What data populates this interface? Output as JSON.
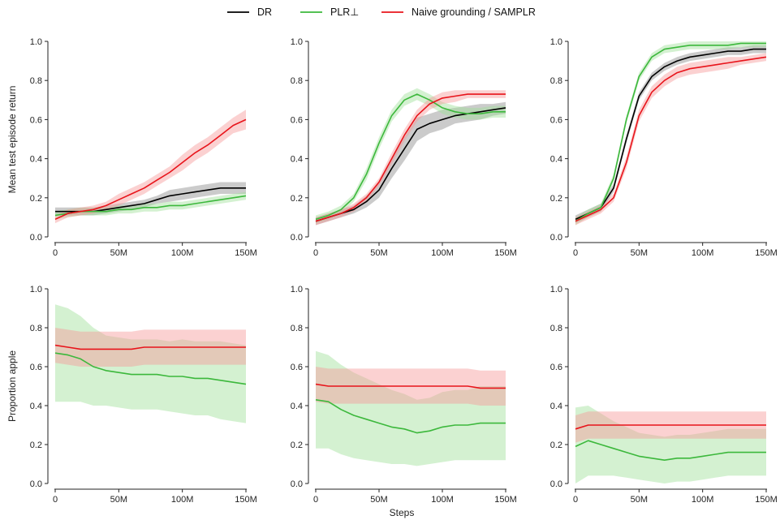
{
  "legend": {
    "placement": "top-center",
    "entries": [
      {
        "label": "DR",
        "color": "#000000"
      },
      {
        "label": "PLR⊥",
        "color": "#3cb83c"
      },
      {
        "label": "Naive grounding / SAMPLR",
        "color": "#e8141b"
      }
    ]
  },
  "band_colors": {
    "DR": "#8c8c8c",
    "PLR⊥": "#9fe09a",
    "Naive grounding / SAMPLR": "#f79a9a"
  },
  "shared_xlabel": "Steps",
  "row_ylabels": [
    "Mean test episode return",
    "Proportion apple"
  ],
  "chart_data": [
    {
      "type": "line",
      "row": 0,
      "col": 0,
      "ylabel": "Mean test episode return",
      "xlim": [
        0,
        150
      ],
      "ylim": [
        0,
        1.0
      ],
      "x_ticks": [
        0,
        50,
        100,
        150
      ],
      "x_tick_labels": [
        "0",
        "50M",
        "100M",
        "150M"
      ],
      "y_ticks": [
        0,
        0.2,
        0.4,
        0.6,
        0.8,
        1.0
      ],
      "y_tick_labels": [
        "0.0",
        "0.2",
        "0.4",
        "0.6",
        "0.8",
        "1.0"
      ],
      "series": [
        {
          "name": "DR",
          "x": [
            0,
            10,
            20,
            30,
            40,
            50,
            60,
            70,
            80,
            90,
            100,
            110,
            120,
            130,
            140,
            150
          ],
          "y": [
            0.13,
            0.13,
            0.13,
            0.13,
            0.14,
            0.15,
            0.16,
            0.17,
            0.19,
            0.21,
            0.22,
            0.23,
            0.24,
            0.25,
            0.25,
            0.25
          ],
          "band": [
            0.02,
            0.02,
            0.02,
            0.02,
            0.02,
            0.02,
            0.02,
            0.02,
            0.02,
            0.03,
            0.03,
            0.03,
            0.03,
            0.03,
            0.03,
            0.03
          ]
        },
        {
          "name": "PLR⊥",
          "x": [
            0,
            10,
            20,
            30,
            40,
            50,
            60,
            70,
            80,
            90,
            100,
            110,
            120,
            130,
            140,
            150
          ],
          "y": [
            0.11,
            0.12,
            0.13,
            0.13,
            0.13,
            0.14,
            0.14,
            0.15,
            0.15,
            0.16,
            0.16,
            0.17,
            0.18,
            0.19,
            0.2,
            0.21
          ],
          "band": [
            0.02,
            0.02,
            0.02,
            0.02,
            0.02,
            0.02,
            0.02,
            0.02,
            0.02,
            0.02,
            0.02,
            0.02,
            0.02,
            0.02,
            0.02,
            0.02
          ]
        },
        {
          "name": "Naive grounding / SAMPLR",
          "x": [
            0,
            10,
            20,
            30,
            40,
            50,
            60,
            70,
            80,
            90,
            100,
            110,
            120,
            130,
            140,
            150
          ],
          "y": [
            0.09,
            0.12,
            0.13,
            0.14,
            0.16,
            0.19,
            0.22,
            0.25,
            0.29,
            0.33,
            0.38,
            0.43,
            0.47,
            0.52,
            0.57,
            0.6
          ],
          "band": [
            0.02,
            0.02,
            0.02,
            0.02,
            0.02,
            0.03,
            0.03,
            0.03,
            0.03,
            0.03,
            0.04,
            0.04,
            0.04,
            0.04,
            0.04,
            0.05
          ]
        }
      ]
    },
    {
      "type": "line",
      "row": 0,
      "col": 1,
      "xlim": [
        0,
        150
      ],
      "ylim": [
        0,
        1.0
      ],
      "x_ticks": [
        0,
        50,
        100,
        150
      ],
      "x_tick_labels": [
        "0",
        "50M",
        "100M",
        "150M"
      ],
      "y_ticks": [
        0,
        0.2,
        0.4,
        0.6,
        0.8,
        1.0
      ],
      "y_tick_labels": [
        "0.0",
        "0.2",
        "0.4",
        "0.6",
        "0.8",
        "1.0"
      ],
      "series": [
        {
          "name": "DR",
          "x": [
            0,
            10,
            20,
            30,
            40,
            50,
            60,
            70,
            80,
            90,
            100,
            110,
            120,
            130,
            140,
            150
          ],
          "y": [
            0.08,
            0.1,
            0.12,
            0.14,
            0.18,
            0.24,
            0.35,
            0.45,
            0.55,
            0.58,
            0.6,
            0.62,
            0.63,
            0.64,
            0.65,
            0.66
          ],
          "band": [
            0.02,
            0.02,
            0.02,
            0.02,
            0.03,
            0.04,
            0.05,
            0.06,
            0.06,
            0.05,
            0.05,
            0.04,
            0.04,
            0.04,
            0.03,
            0.03
          ]
        },
        {
          "name": "PLR⊥",
          "x": [
            0,
            10,
            20,
            30,
            40,
            50,
            60,
            70,
            80,
            90,
            100,
            110,
            120,
            130,
            140,
            150
          ],
          "y": [
            0.09,
            0.11,
            0.14,
            0.2,
            0.32,
            0.48,
            0.62,
            0.7,
            0.73,
            0.7,
            0.66,
            0.64,
            0.63,
            0.63,
            0.64,
            0.64
          ],
          "band": [
            0.02,
            0.02,
            0.02,
            0.02,
            0.03,
            0.03,
            0.03,
            0.03,
            0.03,
            0.03,
            0.03,
            0.03,
            0.03,
            0.03,
            0.03,
            0.03
          ]
        },
        {
          "name": "Naive grounding / SAMPLR",
          "x": [
            0,
            10,
            20,
            30,
            40,
            50,
            60,
            70,
            80,
            90,
            100,
            110,
            120,
            130,
            140,
            150
          ],
          "y": [
            0.08,
            0.1,
            0.12,
            0.15,
            0.2,
            0.28,
            0.4,
            0.52,
            0.62,
            0.68,
            0.71,
            0.72,
            0.73,
            0.73,
            0.73,
            0.73
          ],
          "band": [
            0.02,
            0.02,
            0.02,
            0.02,
            0.02,
            0.02,
            0.03,
            0.03,
            0.03,
            0.03,
            0.03,
            0.03,
            0.02,
            0.02,
            0.02,
            0.02
          ]
        }
      ]
    },
    {
      "type": "line",
      "row": 0,
      "col": 2,
      "xlim": [
        0,
        150
      ],
      "ylim": [
        0,
        1.0
      ],
      "x_ticks": [
        0,
        50,
        100,
        150
      ],
      "x_tick_labels": [
        "0",
        "50M",
        "100M",
        "150M"
      ],
      "y_ticks": [
        0,
        0.2,
        0.4,
        0.6,
        0.8,
        1.0
      ],
      "y_tick_labels": [
        "0.0",
        "0.2",
        "0.4",
        "0.6",
        "0.8",
        "1.0"
      ],
      "series": [
        {
          "name": "DR",
          "x": [
            0,
            10,
            20,
            30,
            40,
            50,
            60,
            70,
            80,
            90,
            100,
            110,
            120,
            130,
            140,
            150
          ],
          "y": [
            0.09,
            0.12,
            0.15,
            0.25,
            0.5,
            0.72,
            0.82,
            0.87,
            0.9,
            0.92,
            0.93,
            0.94,
            0.95,
            0.95,
            0.96,
            0.96
          ],
          "band": [
            0.02,
            0.02,
            0.02,
            0.02,
            0.02,
            0.02,
            0.02,
            0.02,
            0.02,
            0.02,
            0.02,
            0.02,
            0.02,
            0.02,
            0.02,
            0.02
          ]
        },
        {
          "name": "PLR⊥",
          "x": [
            0,
            10,
            20,
            30,
            40,
            50,
            60,
            70,
            80,
            90,
            100,
            110,
            120,
            130,
            140,
            150
          ],
          "y": [
            0.08,
            0.12,
            0.15,
            0.3,
            0.6,
            0.82,
            0.92,
            0.96,
            0.97,
            0.98,
            0.98,
            0.98,
            0.98,
            0.99,
            0.99,
            0.99
          ],
          "band": [
            0.02,
            0.02,
            0.02,
            0.02,
            0.02,
            0.02,
            0.02,
            0.02,
            0.02,
            0.02,
            0.02,
            0.02,
            0.02,
            0.02,
            0.02,
            0.02
          ]
        },
        {
          "name": "Naive grounding / SAMPLR",
          "x": [
            0,
            10,
            20,
            30,
            40,
            50,
            60,
            70,
            80,
            90,
            100,
            110,
            120,
            130,
            140,
            150
          ],
          "y": [
            0.08,
            0.11,
            0.14,
            0.2,
            0.38,
            0.62,
            0.74,
            0.8,
            0.84,
            0.86,
            0.87,
            0.88,
            0.89,
            0.9,
            0.91,
            0.92
          ],
          "band": [
            0.02,
            0.02,
            0.02,
            0.02,
            0.03,
            0.03,
            0.03,
            0.03,
            0.03,
            0.03,
            0.03,
            0.03,
            0.03,
            0.02,
            0.02,
            0.02
          ]
        }
      ]
    },
    {
      "type": "line",
      "row": 1,
      "col": 0,
      "ylabel": "Proportion apple",
      "xlim": [
        0,
        150
      ],
      "ylim": [
        0,
        1.0
      ],
      "x_ticks": [
        0,
        50,
        100,
        150
      ],
      "x_tick_labels": [
        "0",
        "50M",
        "100M",
        "150M"
      ],
      "y_ticks": [
        0,
        0.2,
        0.4,
        0.6,
        0.8,
        1.0
      ],
      "y_tick_labels": [
        "0.0",
        "0.2",
        "0.4",
        "0.6",
        "0.8",
        "1.0"
      ],
      "series": [
        {
          "name": "PLR⊥",
          "x": [
            0,
            10,
            20,
            30,
            40,
            50,
            60,
            70,
            80,
            90,
            100,
            110,
            120,
            130,
            140,
            150
          ],
          "y": [
            0.67,
            0.66,
            0.64,
            0.6,
            0.58,
            0.57,
            0.56,
            0.56,
            0.56,
            0.55,
            0.55,
            0.54,
            0.54,
            0.53,
            0.52,
            0.51
          ],
          "band": [
            0.25,
            0.24,
            0.22,
            0.2,
            0.18,
            0.18,
            0.18,
            0.18,
            0.18,
            0.18,
            0.19,
            0.19,
            0.19,
            0.2,
            0.2,
            0.2
          ]
        },
        {
          "name": "Naive grounding / SAMPLR",
          "x": [
            0,
            10,
            20,
            30,
            40,
            50,
            60,
            70,
            80,
            90,
            100,
            110,
            120,
            130,
            140,
            150
          ],
          "y": [
            0.71,
            0.7,
            0.69,
            0.69,
            0.69,
            0.69,
            0.69,
            0.7,
            0.7,
            0.7,
            0.7,
            0.7,
            0.7,
            0.7,
            0.7,
            0.7
          ],
          "band": [
            0.09,
            0.09,
            0.09,
            0.09,
            0.09,
            0.09,
            0.09,
            0.09,
            0.09,
            0.09,
            0.09,
            0.09,
            0.09,
            0.09,
            0.09,
            0.09
          ]
        }
      ]
    },
    {
      "type": "line",
      "row": 1,
      "col": 1,
      "xlim": [
        0,
        150
      ],
      "ylim": [
        0,
        1.0
      ],
      "x_ticks": [
        0,
        50,
        100,
        150
      ],
      "x_tick_labels": [
        "0",
        "50M",
        "100M",
        "150M"
      ],
      "y_ticks": [
        0,
        0.2,
        0.4,
        0.6,
        0.8,
        1.0
      ],
      "y_tick_labels": [
        "0.0",
        "0.2",
        "0.4",
        "0.6",
        "0.8",
        "1.0"
      ],
      "series": [
        {
          "name": "PLR⊥",
          "x": [
            0,
            10,
            20,
            30,
            40,
            50,
            60,
            70,
            80,
            90,
            100,
            110,
            120,
            130,
            140,
            150
          ],
          "y": [
            0.43,
            0.42,
            0.38,
            0.35,
            0.33,
            0.31,
            0.29,
            0.28,
            0.26,
            0.27,
            0.29,
            0.3,
            0.3,
            0.31,
            0.31,
            0.31
          ],
          "band": [
            0.25,
            0.24,
            0.23,
            0.22,
            0.21,
            0.2,
            0.19,
            0.18,
            0.17,
            0.17,
            0.18,
            0.18,
            0.18,
            0.19,
            0.19,
            0.19
          ]
        },
        {
          "name": "Naive grounding / SAMPLR",
          "x": [
            0,
            10,
            20,
            30,
            40,
            50,
            60,
            70,
            80,
            90,
            100,
            110,
            120,
            130,
            140,
            150
          ],
          "y": [
            0.51,
            0.5,
            0.5,
            0.5,
            0.5,
            0.5,
            0.5,
            0.5,
            0.5,
            0.5,
            0.5,
            0.5,
            0.5,
            0.49,
            0.49,
            0.49
          ],
          "band": [
            0.09,
            0.09,
            0.09,
            0.09,
            0.09,
            0.09,
            0.09,
            0.09,
            0.09,
            0.09,
            0.09,
            0.09,
            0.09,
            0.09,
            0.09,
            0.09
          ]
        }
      ]
    },
    {
      "type": "line",
      "row": 1,
      "col": 2,
      "xlim": [
        0,
        150
      ],
      "ylim": [
        0,
        1.0
      ],
      "x_ticks": [
        0,
        50,
        100,
        150
      ],
      "x_tick_labels": [
        "0",
        "50M",
        "100M",
        "150M"
      ],
      "y_ticks": [
        0,
        0.2,
        0.4,
        0.6,
        0.8,
        1.0
      ],
      "y_tick_labels": [
        "0.0",
        "0.2",
        "0.4",
        "0.6",
        "0.8",
        "1.0"
      ],
      "series": [
        {
          "name": "PLR⊥",
          "x": [
            0,
            10,
            20,
            30,
            40,
            50,
            60,
            70,
            80,
            90,
            100,
            110,
            120,
            130,
            140,
            150
          ],
          "y": [
            0.19,
            0.22,
            0.2,
            0.18,
            0.16,
            0.14,
            0.13,
            0.12,
            0.13,
            0.13,
            0.14,
            0.15,
            0.16,
            0.16,
            0.16,
            0.16
          ],
          "band": [
            0.2,
            0.18,
            0.16,
            0.14,
            0.13,
            0.12,
            0.12,
            0.12,
            0.12,
            0.12,
            0.12,
            0.12,
            0.12,
            0.12,
            0.12,
            0.12
          ]
        },
        {
          "name": "Naive grounding / SAMPLR",
          "x": [
            0,
            10,
            20,
            30,
            40,
            50,
            60,
            70,
            80,
            90,
            100,
            110,
            120,
            130,
            140,
            150
          ],
          "y": [
            0.28,
            0.3,
            0.3,
            0.3,
            0.3,
            0.3,
            0.3,
            0.3,
            0.3,
            0.3,
            0.3,
            0.3,
            0.3,
            0.3,
            0.3,
            0.3
          ],
          "band": [
            0.07,
            0.07,
            0.07,
            0.07,
            0.07,
            0.07,
            0.07,
            0.07,
            0.07,
            0.07,
            0.07,
            0.07,
            0.07,
            0.07,
            0.07,
            0.07
          ]
        }
      ]
    }
  ]
}
